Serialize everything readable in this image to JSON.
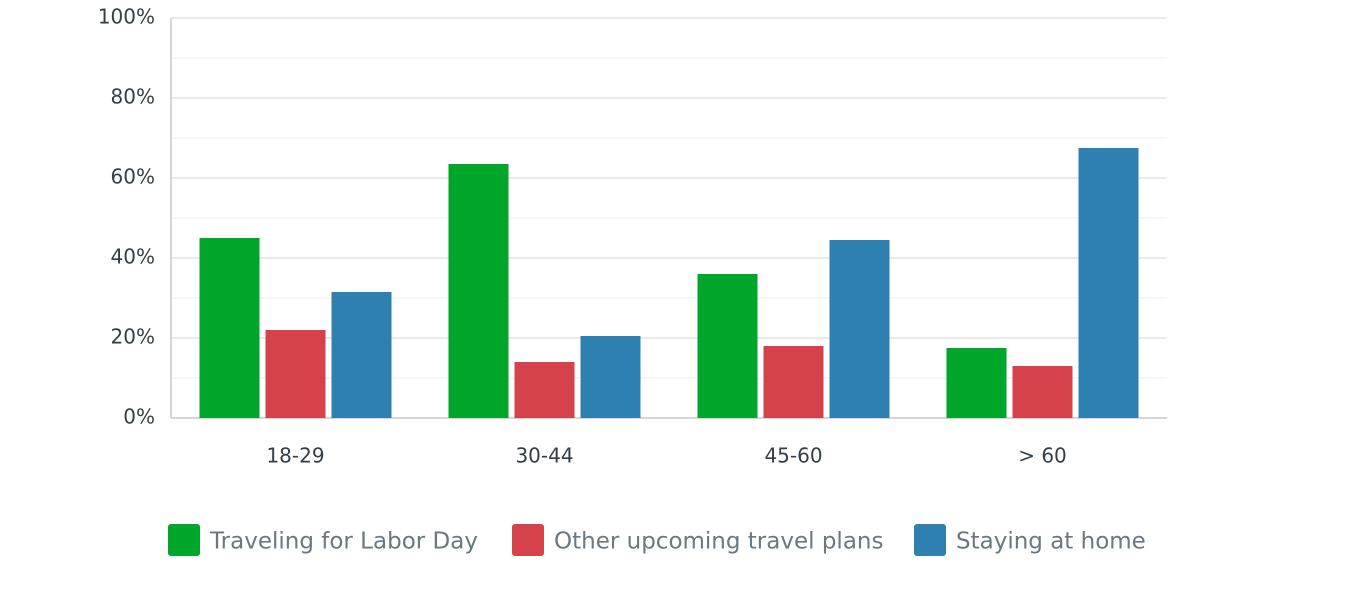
{
  "chart_data": {
    "type": "bar",
    "categories": [
      "18-29",
      "30-44",
      "45-60",
      "> 60"
    ],
    "series": [
      {
        "name": "Traveling for Labor Day",
        "color": "#00a62a",
        "values": [
          45,
          63.5,
          36,
          17.5
        ]
      },
      {
        "name": "Other upcoming travel plans",
        "color": "#d5424c",
        "values": [
          22,
          14,
          18,
          13
        ]
      },
      {
        "name": "Staying at home",
        "color": "#2e80b0",
        "values": [
          31.5,
          20.5,
          44.5,
          67.5
        ]
      }
    ],
    "ylim": [
      0,
      100
    ],
    "yticks": [
      {
        "value": 0,
        "label": "0%"
      },
      {
        "value": 20,
        "label": "20%"
      },
      {
        "value": 40,
        "label": "40%"
      },
      {
        "value": 60,
        "label": "60%"
      },
      {
        "value": 80,
        "label": "80%"
      },
      {
        "value": 100,
        "label": "100%"
      }
    ],
    "minor_yticks": [
      10,
      30,
      50,
      70,
      90
    ],
    "grid": true,
    "legend": "bottom"
  }
}
